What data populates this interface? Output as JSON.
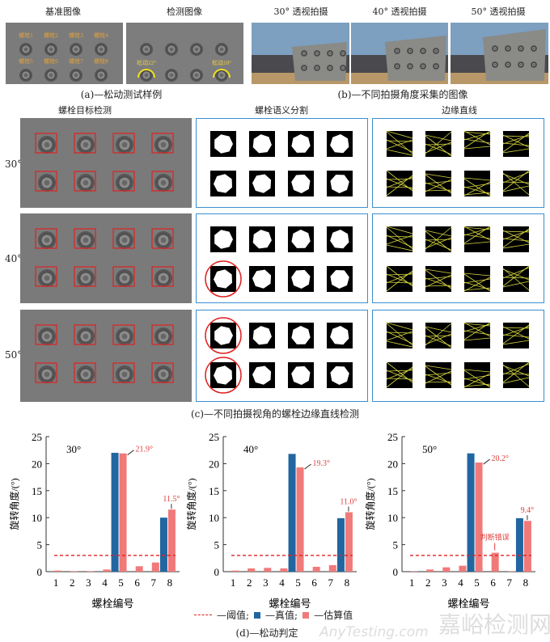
{
  "panel_a": {
    "titles": [
      "基准图像",
      "检测图像"
    ],
    "bolt_labels": [
      "螺栓1",
      "螺栓2",
      "螺栓3",
      "螺栓4",
      "螺栓5",
      "螺栓6",
      "螺栓7",
      "螺栓8"
    ],
    "loosen_labels": [
      "松动22°",
      "松动10°"
    ],
    "caption": "(a)—松动测试样例"
  },
  "panel_b": {
    "titles": [
      "30° 透视拍摄",
      "40° 透视拍摄",
      "50° 透视拍摄"
    ],
    "caption": "(b)—不同拍摄角度采集的图像"
  },
  "panel_c": {
    "column_titles": [
      "螺栓目标检测",
      "螺栓语义分割",
      "边缘直线"
    ],
    "row_labels": [
      "30°",
      "40°",
      "50°"
    ],
    "caption": "(c)—不同拍摄视角的螺栓边缘直线检测"
  },
  "panel_d": {
    "caption": "(d)—松动判定",
    "legend": [
      "—阈值;",
      "—真值;",
      "—估算值"
    ]
  },
  "colors": {
    "true": "#2166a0",
    "est": "#f07a7a",
    "threshold": "#e02020",
    "panel_border": "#3a8fd0"
  },
  "watermark": {
    "cn": "嘉峪检测网",
    "en": "AnyTesting.com"
  },
  "chart_data": [
    {
      "type": "bar",
      "title": "30°",
      "xlabel": "螺栓编号",
      "ylabel": "旋转角度/(°)",
      "ylim": [
        0,
        25
      ],
      "yticks": [
        "0",
        "5",
        "10",
        "15",
        "20",
        "25"
      ],
      "categories": [
        "1",
        "2",
        "3",
        "4",
        "5",
        "6",
        "7",
        "8"
      ],
      "threshold": 3,
      "series": [
        {
          "name": "真值",
          "values": [
            0,
            0,
            0,
            0,
            22,
            0,
            0,
            10
          ]
        },
        {
          "name": "估算值",
          "values": [
            0.2,
            0.1,
            0.1,
            0.4,
            21.9,
            1.0,
            1.7,
            11.5
          ]
        }
      ],
      "annotations": [
        {
          "cat": 5,
          "text": "21.9°"
        },
        {
          "cat": 8,
          "text": "11.5°"
        }
      ]
    },
    {
      "type": "bar",
      "title": "40°",
      "xlabel": "螺栓编号",
      "ylabel": "旋转角度/(°)",
      "ylim": [
        0,
        25
      ],
      "yticks": [
        "0",
        "5",
        "10",
        "15",
        "20",
        "25"
      ],
      "categories": [
        "1",
        "2",
        "3",
        "4",
        "5",
        "6",
        "7",
        "8"
      ],
      "threshold": 3,
      "series": [
        {
          "name": "真值",
          "values": [
            0,
            0,
            0,
            0,
            21.8,
            0,
            0,
            9.9
          ]
        },
        {
          "name": "估算值",
          "values": [
            0.2,
            0.6,
            0.7,
            0.6,
            19.3,
            0.9,
            1.2,
            11.0
          ]
        }
      ],
      "annotations": [
        {
          "cat": 5,
          "text": "19.3°"
        },
        {
          "cat": 8,
          "text": "11.0°"
        }
      ]
    },
    {
      "type": "bar",
      "title": "50°",
      "xlabel": "螺栓编号",
      "ylabel": "旋转角度/(°)",
      "ylim": [
        0,
        25
      ],
      "yticks": [
        "0",
        "5",
        "10",
        "15",
        "20",
        "25"
      ],
      "categories": [
        "1",
        "2",
        "3",
        "4",
        "5",
        "6",
        "7",
        "8"
      ],
      "threshold": 3,
      "series": [
        {
          "name": "真值",
          "values": [
            0,
            0,
            0,
            0,
            21.9,
            0,
            0,
            9.9
          ]
        },
        {
          "name": "估算值",
          "values": [
            0.05,
            0.4,
            0.8,
            1.1,
            20.2,
            3.5,
            0.05,
            9.4
          ]
        }
      ],
      "annotations": [
        {
          "cat": 5,
          "text": "20.2°"
        },
        {
          "cat": 8,
          "text": "9.4°"
        },
        {
          "cat": 6,
          "text": "判断错误"
        }
      ]
    }
  ]
}
